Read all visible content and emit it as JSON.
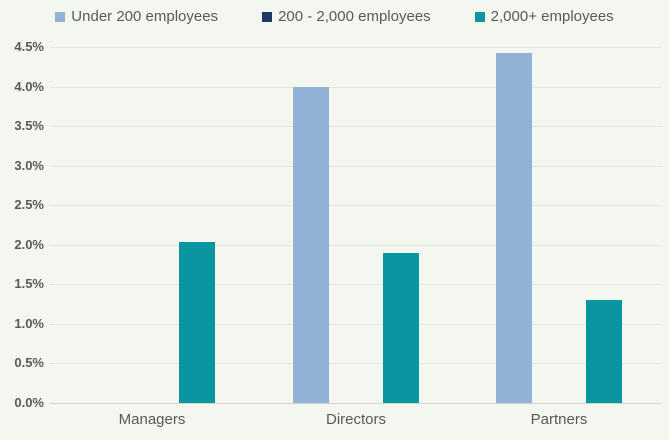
{
  "chart_data": {
    "type": "bar",
    "title": "",
    "categories": [
      "Managers",
      "Directors",
      "Partners"
    ],
    "series": [
      {
        "name": "Under 200 employees",
        "color": "#92b1d6",
        "values": [
          0,
          4.0,
          4.43
        ]
      },
      {
        "name": "200 - 2,000 employees",
        "color": "#1f3864",
        "values": [
          0,
          0,
          0
        ]
      },
      {
        "name": "2,000+ employees",
        "color": "#0996a1",
        "values": [
          2.03,
          1.9,
          1.3
        ]
      }
    ],
    "ylim": [
      0,
      4.5
    ],
    "ytick_step": 0.5,
    "ytick_labels": [
      "0.0%",
      "0.5%",
      "1.0%",
      "1.5%",
      "2.0%",
      "2.5%",
      "3.0%",
      "3.5%",
      "4.0%",
      "4.5%"
    ],
    "ytick_format": "percent_1dp",
    "grid": "horizontal",
    "legend_position": "top"
  },
  "colors": {
    "background": "#f4f7ef",
    "gridline": "#e2e6db",
    "axis_line": "#d2d6ca",
    "tick_label": "#595959",
    "legend_label": "#595959"
  }
}
